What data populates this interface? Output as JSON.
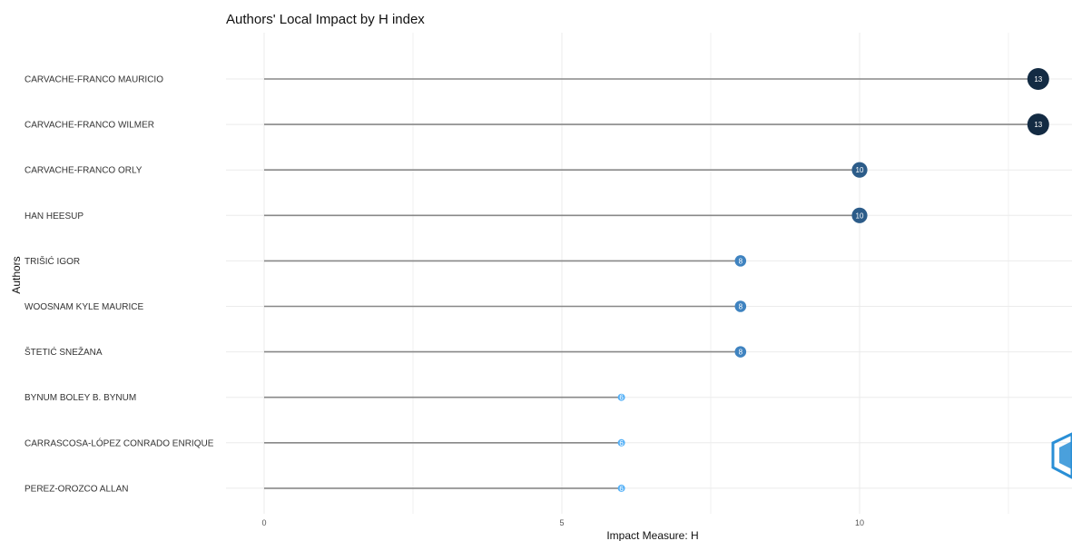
{
  "chart_data": {
    "type": "lollipop",
    "title": "Authors' Local Impact by H index",
    "xlabel": "Impact Measure: H",
    "ylabel": "Authors",
    "xlim": [
      0,
      13.5
    ],
    "xticks": [
      0,
      5,
      10
    ],
    "grid": true,
    "legend": "none",
    "categories": [
      "CARVACHE-FRANCO MAURICIO",
      "CARVACHE-FRANCO WILMER",
      "CARVACHE-FRANCO ORLY",
      "HAN HEESUP",
      "TRIŠIĆ IGOR",
      "WOOSNAM KYLE MAURICE",
      "ŠTETIĆ SNEŽANA",
      "BYNUM BOLEY B. BYNUM",
      "CARRASCOSA-LÓPEZ CONRADO ENRIQUE",
      "PEREZ-OROZCO ALLAN"
    ],
    "values": [
      13,
      13,
      10,
      10,
      8,
      8,
      8,
      6,
      6,
      6
    ],
    "colors": {
      "13": "#132b43",
      "10": "#2c5c89",
      "8": "#3f83c0",
      "6": "#56b1f7",
      "stem": "#888888",
      "grid": "#ebebeb"
    }
  }
}
